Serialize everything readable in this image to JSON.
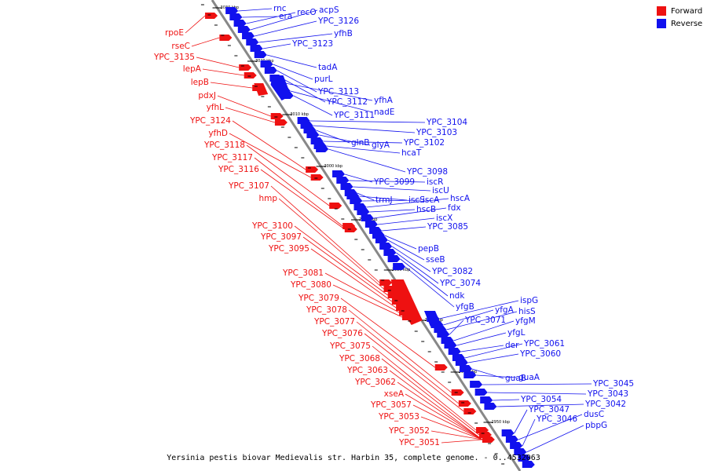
{
  "title": "Yersinia pestis biovar Medievalis str. Harbin 35, complete genome. - 0..4532063",
  "legend": [
    {
      "label": "Forward",
      "color": "#ee1111"
    },
    {
      "label": "Reverse",
      "color": "#1111ee"
    }
  ],
  "colors": {
    "backbone": "#888888",
    "forward": "#ee1111",
    "reverse": "#1111ee",
    "tick": "#000000"
  },
  "ticks": [
    "3030 kbp",
    "3020 kbp",
    "3010 kbp",
    "3000 kbp",
    "2990 kbp",
    "2980 kbp",
    "2970 kbp",
    "2960 kbp",
    "2950 kbp"
  ],
  "forward_labels": [
    "rpoE",
    "rseC",
    "YPC_3135",
    "lepA",
    "lepB",
    "pdxJ",
    "yfhL",
    "YPC_3124",
    "yfhD",
    "YPC_3118",
    "YPC_3117",
    "YPC_3116",
    "YPC_3107",
    "hmp",
    "YPC_3100",
    "YPC_3097",
    "YPC_3095",
    "YPC_3081",
    "YPC_3080",
    "YPC_3079",
    "YPC_3078",
    "YPC_3077",
    "YPC_3076",
    "YPC_3075",
    "YPC_3068",
    "YPC_3063",
    "YPC_3062",
    "xseA",
    "YPC_3057",
    "YPC_3053",
    "YPC_3052",
    "YPC_3051"
  ],
  "reverse_labels": [
    "rnc",
    "era",
    "recO",
    "acpS",
    "YPC_3126",
    "yfhB",
    "YPC_3123",
    "tadA",
    "purL",
    "YPC_3113",
    "YPC_3112",
    "yfhA",
    "nadE",
    "YPC_3111",
    "YPC_3104",
    "YPC_3103",
    "glnB",
    "glyA",
    "YPC_3102",
    "hcaT",
    "YPC_3098",
    "YPC_3099",
    "iscR",
    "iscU",
    "trmJ",
    "iscS",
    "iscA",
    "hscA",
    "hscB",
    "fdx",
    "iscX",
    "YPC_3085",
    "pepB",
    "sseB",
    "YPC_3082",
    "YPC_3074",
    "ndk",
    "yfgB",
    "ispG",
    "yfgA",
    "hisS",
    "YPC_3071",
    "yfgM",
    "yfgL",
    "der",
    "YPC_3061",
    "YPC_3060",
    "guaB",
    "guaA",
    "YPC_3045",
    "YPC_3043",
    "YPC_3054",
    "YPC_3042",
    "YPC_3047",
    "dusC",
    "YPC_3046",
    "pbpG"
  ]
}
